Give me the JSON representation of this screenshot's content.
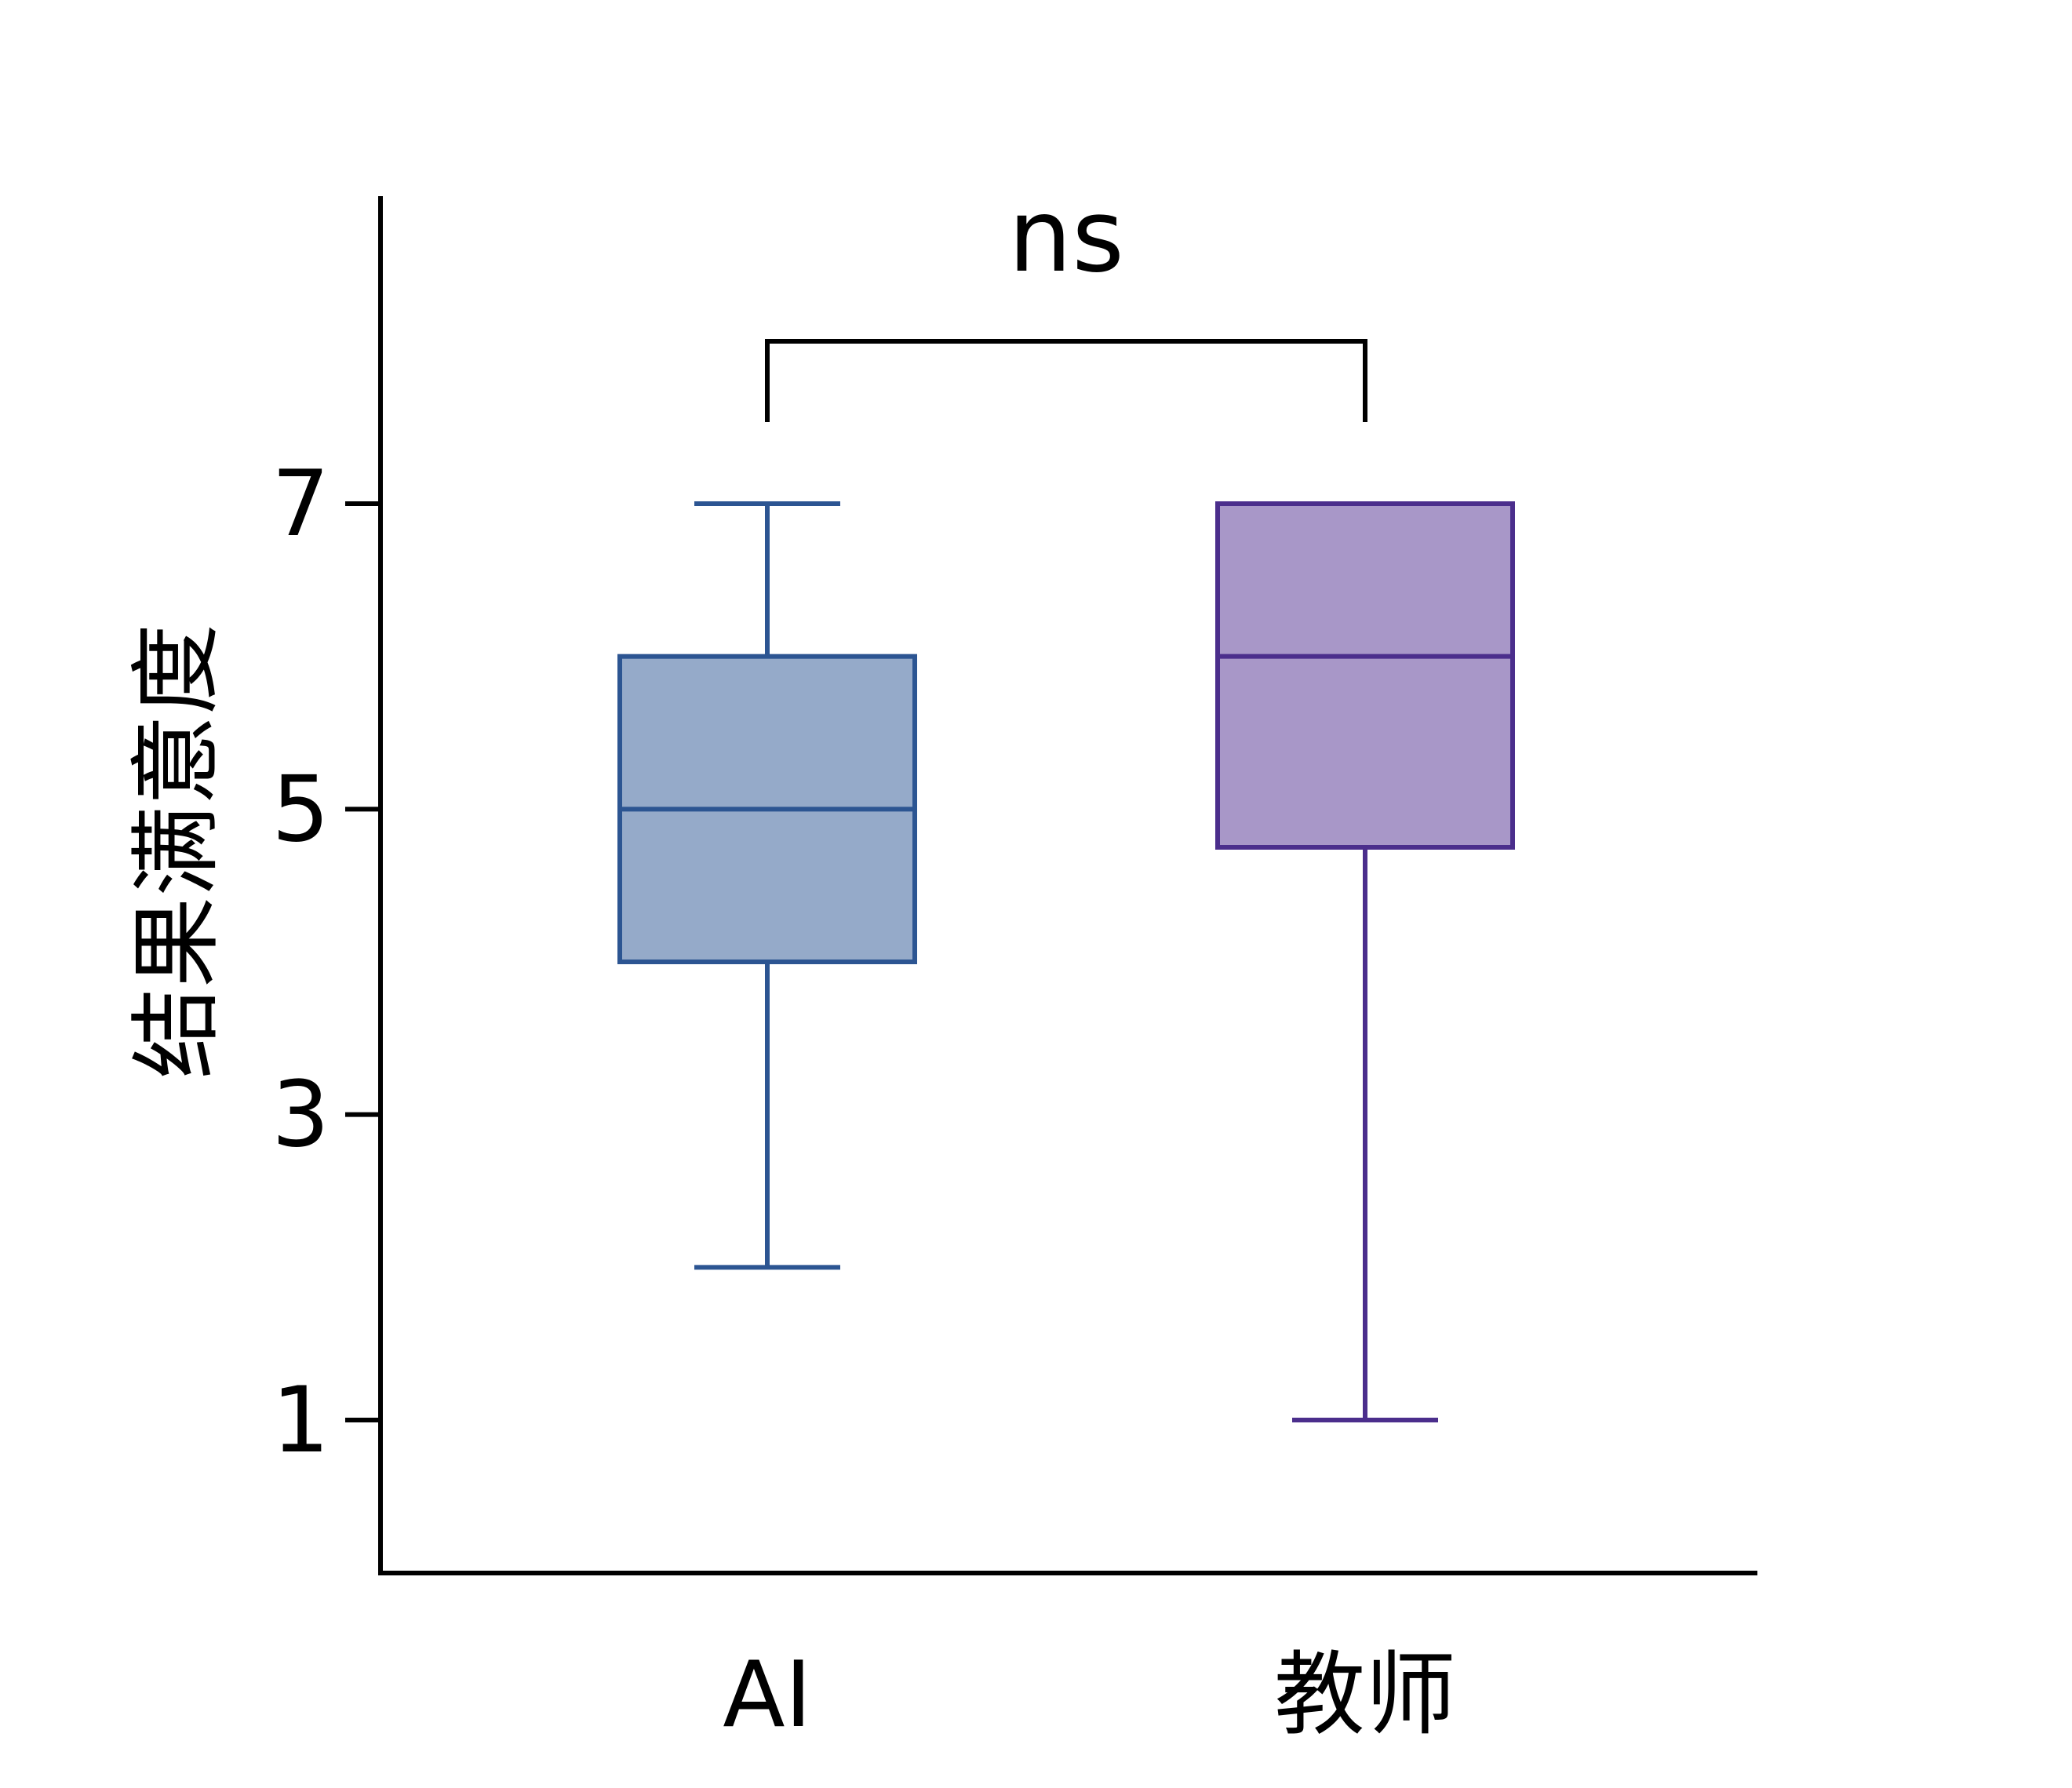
{
  "chart_data": {
    "type": "box",
    "ylabel": "结果满意度",
    "yticks": [
      1,
      3,
      5,
      7
    ],
    "ylim": [
      0,
      10
    ],
    "categories": [
      "AI",
      "教师"
    ],
    "series": [
      {
        "category": "AI",
        "whisker_low": 2,
        "q1": 4,
        "median": 5,
        "q3": 6,
        "whisker_high": 7,
        "fill": "#95aac9",
        "stroke": "#2c5592"
      },
      {
        "category": "教师",
        "whisker_low": 1,
        "q1": 4.75,
        "median": 6,
        "q3": 7,
        "whisker_high": 7,
        "fill": "#a897c8",
        "stroke": "#4b2e8c"
      }
    ],
    "significance": {
      "label": "ns",
      "between": [
        "AI",
        "教师"
      ]
    },
    "grid": false,
    "legend": "none"
  }
}
